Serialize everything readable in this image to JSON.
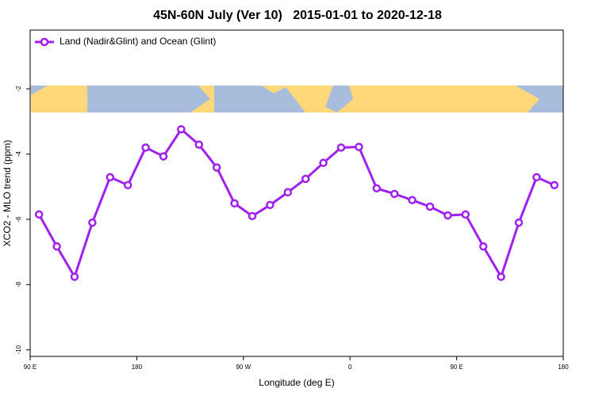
{
  "chart_data": {
    "type": "line",
    "title": "45N-60N July (Ver 10)   2015-01-01 to 2020-12-18",
    "x_label": "Longitude (deg E)",
    "y_label": "XCO2 - MLO trend (ppm)",
    "xlim": [
      90,
      540
    ],
    "xticks": [
      {
        "value": 90,
        "label": "90 E"
      },
      {
        "value": 180,
        "label": "180"
      },
      {
        "value": 270,
        "label": "90 W"
      },
      {
        "value": 360,
        "label": "0"
      },
      {
        "value": 450,
        "label": "90 E"
      },
      {
        "value": 540,
        "label": "180"
      }
    ],
    "ylim": [
      -10.2,
      -0.2
    ],
    "yticks": [
      -2,
      -4,
      -6,
      -8,
      -10
    ],
    "x": [
      97.5,
      112.5,
      127.5,
      142.5,
      157.5,
      172.5,
      187.5,
      202.5,
      217.5,
      232.5,
      247.5,
      262.5,
      277.5,
      292.5,
      307.5,
      322.5,
      337.5,
      352.5,
      367.5,
      382.5,
      397.5,
      412.5,
      427.5,
      442.5,
      457.5,
      472.5,
      487.5,
      502.5,
      517.5,
      532.5
    ],
    "series": [
      {
        "name": "Land (Nadir&Glint) and Ocean (Glint)",
        "color": "#a020f0",
        "values": [
          -5.85,
          -6.83,
          -7.76,
          -6.1,
          -4.71,
          -4.95,
          -3.8,
          -4.07,
          -3.24,
          -3.71,
          -4.41,
          -5.51,
          -5.9,
          -5.56,
          -5.17,
          -4.76,
          -4.27,
          -3.8,
          -3.78,
          -5.05,
          -5.22,
          -5.41,
          -5.61,
          -5.88,
          -5.85,
          -6.83,
          -7.76,
          -6.1,
          -4.71,
          -4.95
        ]
      }
    ]
  }
}
